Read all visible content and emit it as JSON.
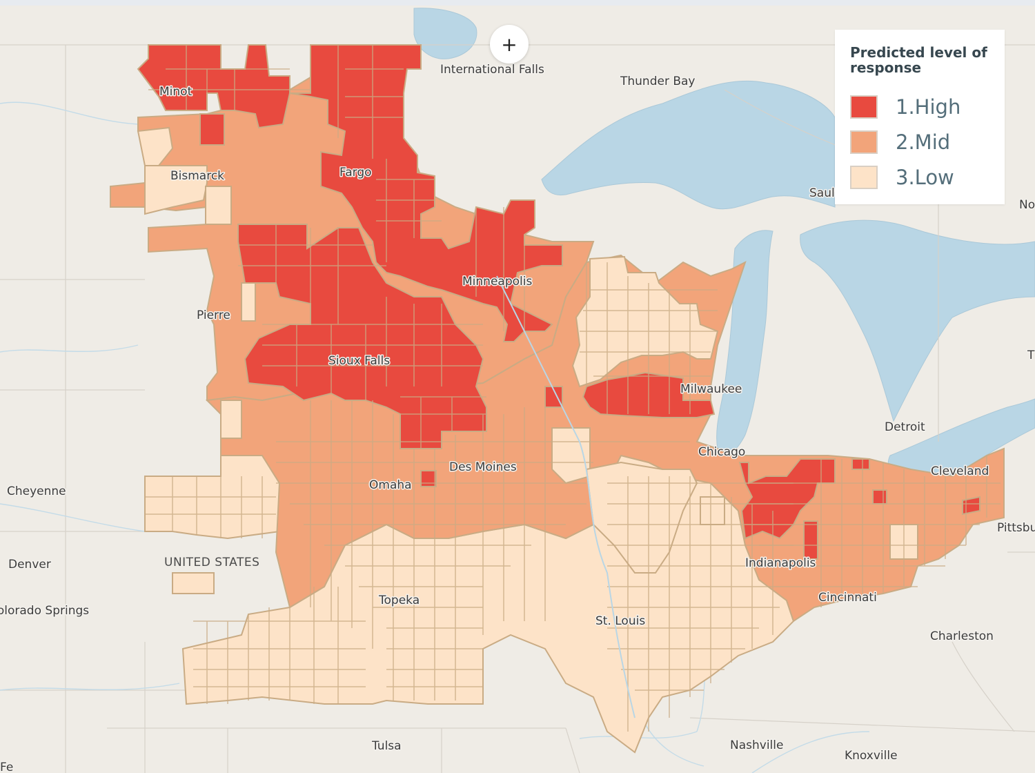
{
  "zoom": {
    "label": "+",
    "icon": "plus-icon"
  },
  "legend": {
    "title": "Predicted level of response",
    "items": [
      {
        "label": "1.High",
        "color": "#e84a3f"
      },
      {
        "label": "2.Mid",
        "color": "#f2a47a"
      },
      {
        "label": "3.Low",
        "color": "#fde3c8"
      }
    ]
  },
  "cities": [
    "International Falls",
    "Thunder Bay",
    "Minot",
    "Bismarck",
    "Fargo",
    "Sault",
    "No",
    "Minneapolis",
    "Pierre",
    "Sioux Falls",
    "Milwaukee",
    "T",
    "Detroit",
    "Chicago",
    "Cheyenne",
    "Omaha",
    "Des Moines",
    "Cleveland",
    "Pittsbu",
    "Denver",
    "UNITED STATES",
    "Indianapolis",
    "Colorado Springs",
    "Cincinnati",
    "Topeka",
    "St. Louis",
    "Charleston",
    "Tulsa",
    "Nashville",
    "Knoxville",
    "Fe"
  ],
  "map_data": {
    "colors": {
      "land": "#efece6",
      "water": "#b9d6e5",
      "border": "#c9ab84"
    }
  }
}
